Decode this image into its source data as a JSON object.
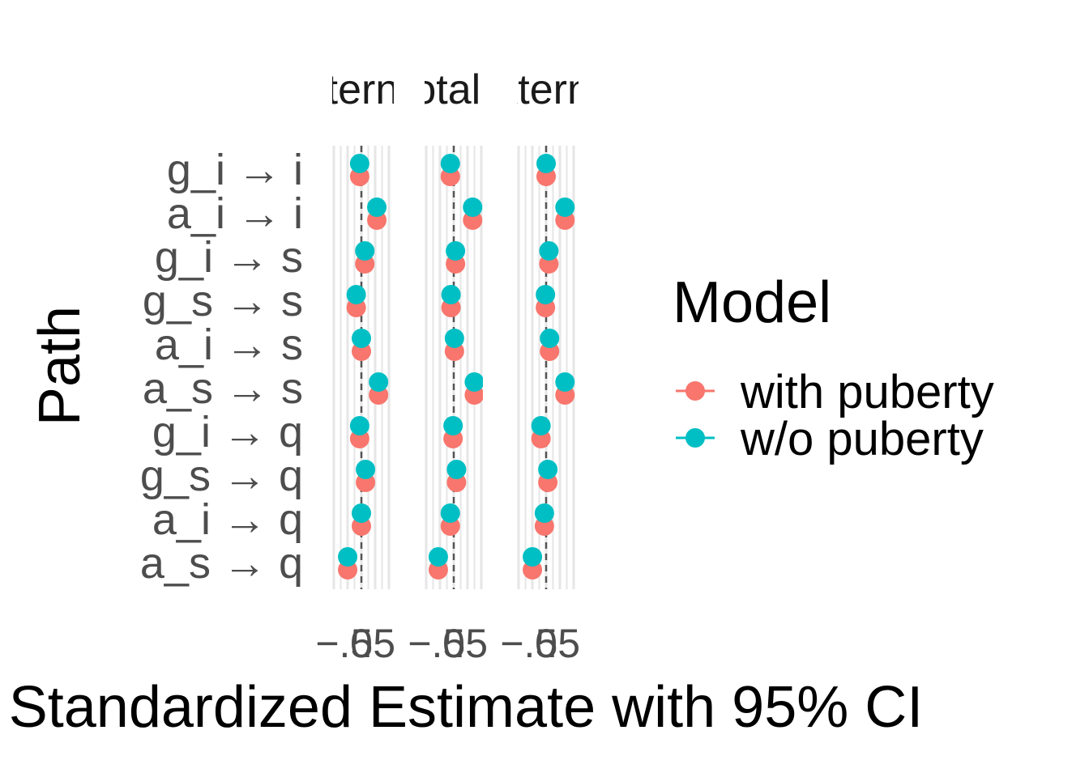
{
  "chart_data": {
    "type": "scatter",
    "xlabel": "Standardized Estimate with 95% CI",
    "ylabel": "Path",
    "facets": [
      "Internal",
      "Total p",
      "External"
    ],
    "y_categories": [
      "g_i → i",
      "a_i → i",
      "g_i → s",
      "g_s → s",
      "a_i → s",
      "a_s → s",
      "g_i → q",
      "g_s → q",
      "a_i → q",
      "a_s → q"
    ],
    "x_tick_labels": [
      "−.5",
      "0",
      ".5"
    ],
    "xlim": [
      -0.85,
      0.85
    ],
    "reference_line_x": 0,
    "legend": {
      "title": "Model",
      "position": "right",
      "entries": [
        {
          "label": "with puberty",
          "color": "#F8766D"
        },
        {
          "label": "w/o puberty",
          "color": "#00BFC4"
        }
      ]
    },
    "series": [
      {
        "name": "with puberty",
        "color": "#F8766D",
        "facet_values": [
          [
            -0.05,
            0.45,
            0.1,
            -0.15,
            0.0,
            0.5,
            -0.05,
            0.12,
            0.0,
            -0.4
          ],
          [
            -0.1,
            0.55,
            0.05,
            -0.08,
            0.02,
            0.6,
            -0.02,
            0.08,
            -0.1,
            -0.45
          ],
          [
            0.0,
            0.55,
            0.08,
            -0.02,
            0.1,
            0.55,
            -0.15,
            0.05,
            -0.05,
            -0.4
          ]
        ]
      },
      {
        "name": "w/o puberty",
        "color": "#00BFC4",
        "facet_values": [
          [
            -0.05,
            0.45,
            0.1,
            -0.15,
            0.0,
            0.5,
            -0.05,
            0.12,
            0.0,
            -0.4
          ],
          [
            -0.1,
            0.55,
            0.05,
            -0.08,
            0.02,
            0.6,
            -0.02,
            0.08,
            -0.1,
            -0.45
          ],
          [
            0.0,
            0.55,
            0.08,
            -0.02,
            0.1,
            0.55,
            -0.15,
            0.05,
            -0.05,
            -0.4
          ]
        ]
      }
    ]
  }
}
